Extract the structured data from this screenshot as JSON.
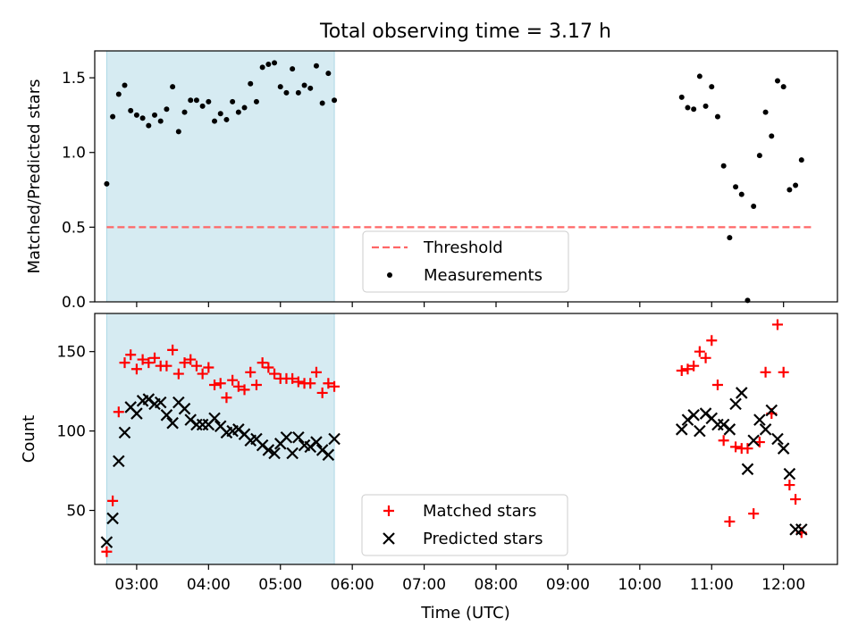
{
  "title": "Total observing time = 3.17 h",
  "xlabel": "Time (UTC)",
  "colors": {
    "highlight": "#add8e6",
    "threshold": "#ff6666",
    "measurement": "#000000",
    "matched": "#ff0000",
    "predicted": "#000000"
  },
  "chart_data": [
    {
      "type": "scatter",
      "panel": "top",
      "ylabel": "Matched/Predicted stars",
      "ylim": [
        0.0,
        1.68
      ],
      "yticks": [
        0.0,
        0.5,
        1.0,
        1.5
      ],
      "ytick_labels": [
        "0.0",
        "0.5",
        "1.0",
        "1.5"
      ],
      "xlim": [
        "02:25",
        "12:45"
      ],
      "shaded_span": [
        "02:35",
        "05:45"
      ],
      "legend": {
        "placement": "bottom-center",
        "entries": [
          "Threshold",
          "Measurements"
        ]
      },
      "threshold": {
        "name": "Threshold",
        "y": 0.5,
        "x_range": [
          "02:35",
          "12:25"
        ],
        "style": "dashed"
      },
      "series": [
        {
          "name": "Measurements",
          "marker": "dot",
          "x": [
            "02:35",
            "02:40",
            "02:45",
            "02:50",
            "02:55",
            "03:00",
            "03:05",
            "03:10",
            "03:15",
            "03:20",
            "03:25",
            "03:30",
            "03:35",
            "03:40",
            "03:45",
            "03:50",
            "03:55",
            "04:00",
            "04:05",
            "04:10",
            "04:15",
            "04:20",
            "04:25",
            "04:30",
            "04:35",
            "04:40",
            "04:45",
            "04:50",
            "04:55",
            "05:00",
            "05:05",
            "05:10",
            "05:15",
            "05:20",
            "05:25",
            "05:30",
            "05:35",
            "05:40",
            "05:45",
            "10:35",
            "10:40",
            "10:45",
            "10:50",
            "10:55",
            "11:00",
            "11:05",
            "11:10",
            "11:15",
            "11:20",
            "11:25",
            "11:30",
            "11:35",
            "11:40",
            "11:45",
            "11:50",
            "11:55",
            "12:00",
            "12:05",
            "12:10",
            "12:15"
          ],
          "y": [
            0.79,
            1.24,
            1.39,
            1.45,
            1.28,
            1.25,
            1.23,
            1.18,
            1.25,
            1.21,
            1.29,
            1.44,
            1.14,
            1.27,
            1.35,
            1.35,
            1.31,
            1.34,
            1.21,
            1.26,
            1.22,
            1.34,
            1.27,
            1.3,
            1.46,
            1.34,
            1.57,
            1.59,
            1.6,
            1.44,
            1.4,
            1.56,
            1.4,
            1.45,
            1.43,
            1.58,
            1.33,
            1.53,
            1.35,
            1.37,
            1.3,
            1.29,
            1.51,
            1.31,
            1.44,
            1.24,
            0.91,
            0.43,
            0.77,
            0.72,
            0.01,
            0.64,
            0.98,
            1.27,
            1.11,
            1.48,
            1.44,
            0.75,
            0.78,
            0.95
          ]
        }
      ]
    },
    {
      "type": "scatter",
      "panel": "bottom",
      "ylabel": "Count",
      "ylim": [
        16,
        174
      ],
      "yticks": [
        50,
        100,
        150
      ],
      "ytick_labels": [
        "50",
        "100",
        "150"
      ],
      "xlim": [
        "02:25",
        "12:45"
      ],
      "xticks": [
        "03:00",
        "04:00",
        "05:00",
        "06:00",
        "07:00",
        "08:00",
        "09:00",
        "10:00",
        "11:00",
        "12:00"
      ],
      "shaded_span": [
        "02:35",
        "05:45"
      ],
      "legend": {
        "placement": "bottom-center",
        "entries": [
          "Matched stars",
          "Predicted stars"
        ]
      },
      "series": [
        {
          "name": "Matched stars",
          "marker": "plus",
          "x": [
            "02:35",
            "02:40",
            "02:45",
            "02:50",
            "02:55",
            "03:00",
            "03:05",
            "03:10",
            "03:15",
            "03:20",
            "03:25",
            "03:30",
            "03:35",
            "03:40",
            "03:45",
            "03:50",
            "03:55",
            "04:00",
            "04:05",
            "04:10",
            "04:15",
            "04:20",
            "04:25",
            "04:30",
            "04:35",
            "04:40",
            "04:45",
            "04:50",
            "04:55",
            "05:00",
            "05:05",
            "05:10",
            "05:15",
            "05:20",
            "05:25",
            "05:30",
            "05:35",
            "05:40",
            "05:45",
            "10:35",
            "10:40",
            "10:45",
            "10:50",
            "10:55",
            "11:00",
            "11:05",
            "11:10",
            "11:15",
            "11:20",
            "11:25",
            "11:30",
            "11:35",
            "11:40",
            "11:45",
            "11:50",
            "11:55",
            "12:00",
            "12:05",
            "12:10",
            "12:15"
          ],
          "y": [
            24,
            56,
            112,
            143,
            148,
            139,
            145,
            143,
            146,
            141,
            141,
            151,
            136,
            143,
            145,
            141,
            136,
            140,
            129,
            130,
            121,
            132,
            128,
            126,
            137,
            129,
            143,
            140,
            136,
            133,
            133,
            133,
            131,
            130,
            130,
            137,
            124,
            130,
            128,
            138,
            139,
            141,
            150,
            146,
            157,
            129,
            94,
            43,
            90,
            89,
            89,
            48,
            93,
            137,
            111,
            167,
            137,
            66,
            57,
            36
          ]
        },
        {
          "name": "Predicted stars",
          "marker": "x",
          "x": [
            "02:35",
            "02:40",
            "02:45",
            "02:50",
            "02:55",
            "03:00",
            "03:05",
            "03:10",
            "03:15",
            "03:20",
            "03:25",
            "03:30",
            "03:35",
            "03:40",
            "03:45",
            "03:50",
            "03:55",
            "04:00",
            "04:05",
            "04:10",
            "04:15",
            "04:20",
            "04:25",
            "04:30",
            "04:35",
            "04:40",
            "04:45",
            "04:50",
            "04:55",
            "05:00",
            "05:05",
            "05:10",
            "05:15",
            "05:20",
            "05:25",
            "05:30",
            "05:35",
            "05:40",
            "05:45",
            "10:35",
            "10:40",
            "10:45",
            "10:50",
            "10:55",
            "11:00",
            "11:05",
            "11:10",
            "11:15",
            "11:20",
            "11:25",
            "11:30",
            "11:35",
            "11:40",
            "11:45",
            "11:50",
            "11:55",
            "12:00",
            "12:05",
            "12:10",
            "12:15"
          ],
          "y": [
            30,
            45,
            81,
            99,
            115,
            111,
            119,
            120,
            117,
            118,
            110,
            105,
            118,
            114,
            107,
            104,
            104,
            104,
            108,
            103,
            99,
            100,
            101,
            98,
            94,
            95,
            91,
            88,
            86,
            92,
            96,
            86,
            96,
            91,
            90,
            93,
            88,
            85,
            95,
            101,
            107,
            110,
            100,
            111,
            108,
            104,
            104,
            101,
            117,
            124,
            76,
            94,
            107,
            101,
            113,
            95,
            89,
            73,
            38,
            38
          ]
        }
      ]
    }
  ]
}
